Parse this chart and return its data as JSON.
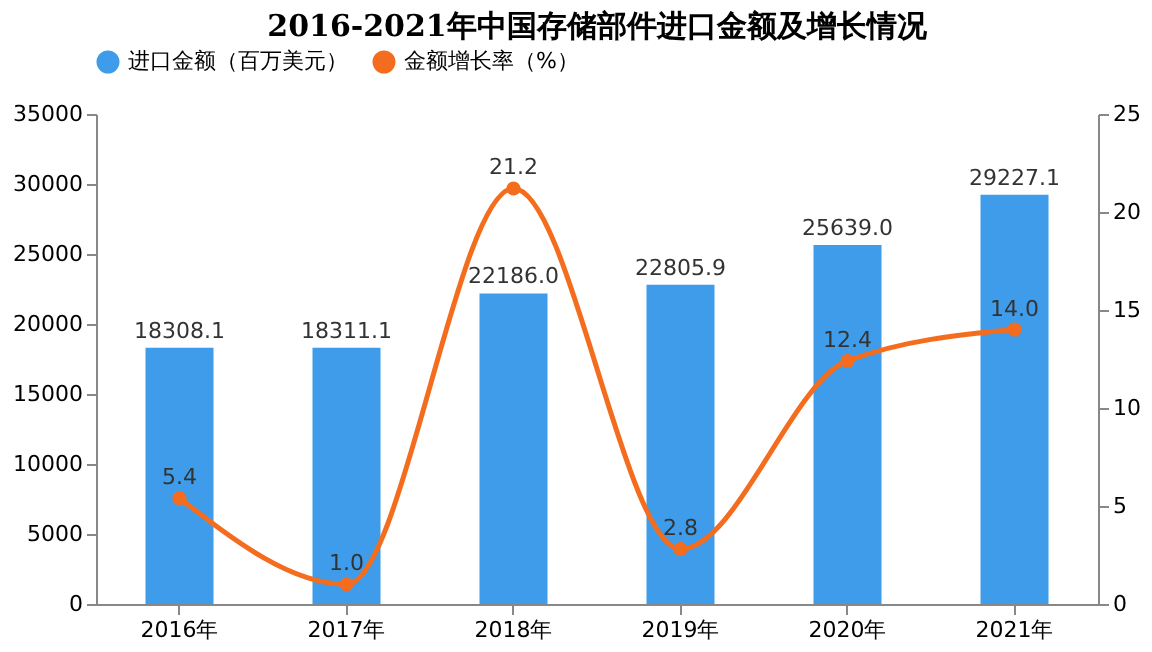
{
  "chart_data": {
    "type": "bar",
    "title": "2016-2021年中国存储部件进口金额及增长情况",
    "categories": [
      "2016年",
      "2017年",
      "2018年",
      "2019年",
      "2020年",
      "2021年"
    ],
    "series": [
      {
        "name": "进口金额（百万美元）",
        "color": "#3e9cea",
        "values": [
          18308.1,
          18311.1,
          22186.0,
          22805.9,
          25639.0,
          29227.1
        ],
        "value_labels": [
          "18308.1",
          "18311.1",
          "22186.0",
          "22805.9",
          "25639.0",
          "29227.1"
        ]
      },
      {
        "name": "金额增长率（%）",
        "type": "line",
        "axis": "y2",
        "color": "#f46d1e",
        "marker": "circle",
        "values": [
          5.4,
          1.0,
          21.2,
          2.8,
          12.4,
          14.0
        ],
        "value_labels": [
          "5.4",
          "1.0",
          "21.2",
          "2.8",
          "12.4",
          "14.0"
        ]
      }
    ],
    "ylim": [
      0,
      35000
    ],
    "yticks": [
      0,
      5000,
      10000,
      15000,
      20000,
      25000,
      30000,
      35000
    ],
    "y2lim": [
      0,
      25
    ],
    "y2ticks": [
      0,
      5,
      10,
      15,
      20,
      25
    ],
    "data_labels": true,
    "legend": "top",
    "grid": false
  }
}
